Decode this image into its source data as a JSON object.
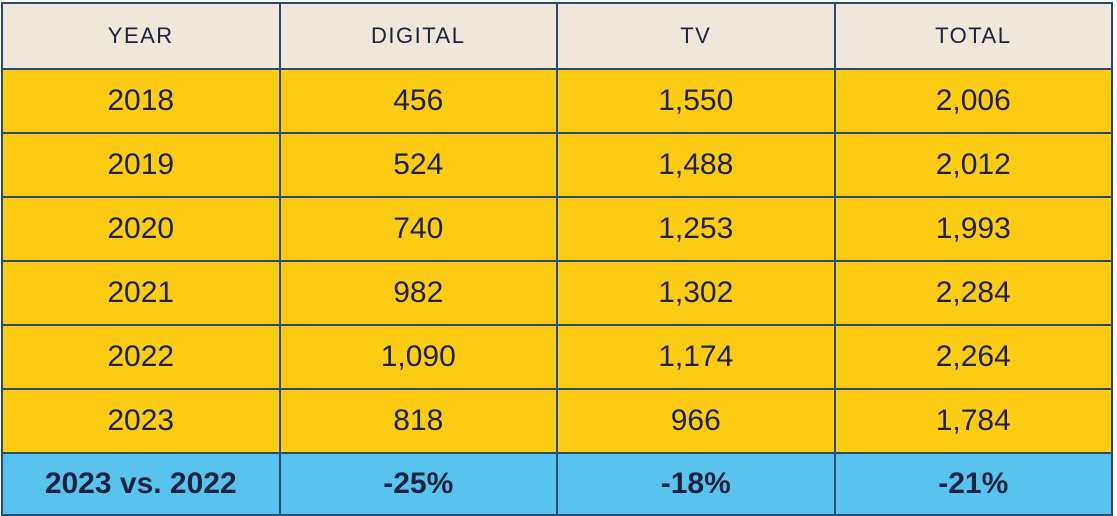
{
  "table": {
    "headers": [
      "YEAR",
      "DIGITAL",
      "TV",
      "TOTAL"
    ],
    "rows": [
      [
        "2018",
        "456",
        "1,550",
        "2,006"
      ],
      [
        "2019",
        "524",
        "1,488",
        "2,012"
      ],
      [
        "2020",
        "740",
        "1,253",
        "1,993"
      ],
      [
        "2021",
        "982",
        "1,302",
        "2,284"
      ],
      [
        "2022",
        "1,090",
        "1,174",
        "2,264"
      ],
      [
        "2023",
        "818",
        "966",
        "1,784"
      ]
    ],
    "summary": [
      "2023 vs. 2022",
      "-25%",
      "-18%",
      "-21%"
    ]
  },
  "colors": {
    "header_bg": "#efe7da",
    "row_bg": "#fccb13",
    "summary_bg": "#58c4ee",
    "border": "#2b4a73",
    "text": "#1c2340"
  },
  "chart_data": {
    "type": "table",
    "columns": [
      "YEAR",
      "DIGITAL",
      "TV",
      "TOTAL"
    ],
    "rows": [
      {
        "YEAR": 2018,
        "DIGITAL": 456,
        "TV": 1550,
        "TOTAL": 2006
      },
      {
        "YEAR": 2019,
        "DIGITAL": 524,
        "TV": 1488,
        "TOTAL": 2012
      },
      {
        "YEAR": 2020,
        "DIGITAL": 740,
        "TV": 1253,
        "TOTAL": 1993
      },
      {
        "YEAR": 2021,
        "DIGITAL": 982,
        "TV": 1302,
        "TOTAL": 2284
      },
      {
        "YEAR": 2022,
        "DIGITAL": 1090,
        "TV": 1174,
        "TOTAL": 2264
      },
      {
        "YEAR": 2023,
        "DIGITAL": 818,
        "TV": 966,
        "TOTAL": 1784
      }
    ],
    "summary": {
      "label": "2023 vs. 2022",
      "DIGITAL": "-25%",
      "TV": "-18%",
      "TOTAL": "-21%"
    }
  }
}
